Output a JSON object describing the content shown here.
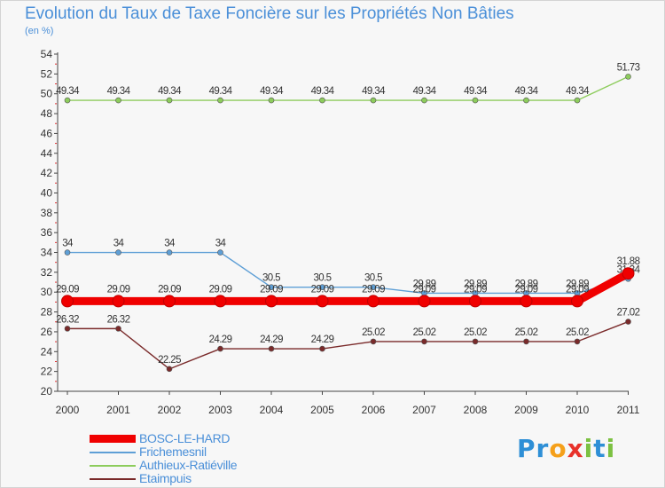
{
  "chart_data": {
    "type": "line",
    "title": "Evolution du Taux de Taxe Foncière sur les Propriétés Non Bâties",
    "ylabel": "(en %)",
    "xlabel": "",
    "ylim": [
      20,
      54
    ],
    "ytick_step": 2,
    "x": [
      "2000",
      "2001",
      "2002",
      "2003",
      "2004",
      "2005",
      "2006",
      "2007",
      "2008",
      "2009",
      "2010",
      "2011"
    ],
    "grid": false,
    "series": [
      {
        "name": "Authieux-Ratiéville",
        "color": "#8dcc5c",
        "values": [
          49.34,
          49.34,
          49.34,
          49.34,
          49.34,
          49.34,
          49.34,
          49.34,
          49.34,
          49.34,
          49.34,
          51.73
        ],
        "labels": [
          "49.34",
          "49.34",
          "49.34",
          "49.34",
          "49.34",
          "49.34",
          "49.34",
          "49.34",
          "49.34",
          "49.34",
          "49.34",
          "51.73"
        ]
      },
      {
        "name": "Frichemesnil",
        "color": "#5e9fd6",
        "values": [
          34,
          34,
          34,
          34,
          30.5,
          30.5,
          30.5,
          29.89,
          29.89,
          29.89,
          29.89,
          31.34
        ],
        "labels": [
          "34",
          "34",
          "34",
          "34",
          "30.5",
          "30.5",
          "30.5",
          "29.89",
          "29.89",
          "29.89",
          "29.89",
          "31.34"
        ]
      },
      {
        "name": "BOSC-LE-HARD",
        "color": "#f00000",
        "values": [
          29.09,
          29.09,
          29.09,
          29.09,
          29.09,
          29.09,
          29.09,
          29.09,
          29.09,
          29.09,
          29.09,
          31.88
        ],
        "labels": [
          "29.09",
          "29.09",
          "29.09",
          "29.09",
          "29.09",
          "29.09",
          "29.09",
          "29.09",
          "29.09",
          "29.09",
          "29.09",
          "31.88"
        ]
      },
      {
        "name": "Etaimpuis",
        "color": "#7a2a2a",
        "values": [
          26.32,
          26.32,
          22.25,
          24.29,
          24.29,
          24.29,
          25.02,
          25.02,
          25.02,
          25.02,
          25.02,
          27.02
        ],
        "labels": [
          "26.32",
          "26.32",
          "22.25",
          "24.29",
          "24.29",
          "24.29",
          "25.02",
          "25.02",
          "25.02",
          "25.02",
          "25.02",
          "27.02"
        ]
      }
    ],
    "legend": {
      "position": "bottom-left",
      "entries": [
        "BOSC-LE-HARD",
        "Frichemesnil",
        "Authieux-Ratiéville",
        "Etaimpuis"
      ]
    }
  },
  "logo": {
    "text": "Proxiti",
    "letters": [
      {
        "ch": "P",
        "color": "#2e8fd6"
      },
      {
        "ch": "r",
        "color": "#2e8fd6"
      },
      {
        "ch": "o",
        "color": "#f5a01a"
      },
      {
        "ch": "x",
        "color": "#e8322a"
      },
      {
        "ch": "i",
        "color": "#7cc142"
      },
      {
        "ch": "t",
        "color": "#2e8fd6"
      },
      {
        "ch": "i",
        "color": "#7cc142"
      }
    ]
  }
}
